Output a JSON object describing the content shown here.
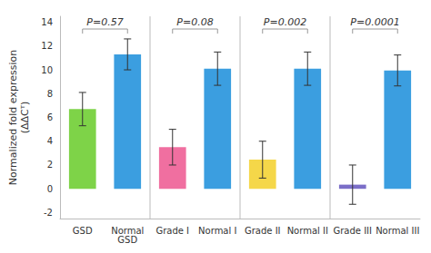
{
  "chart_data": {
    "type": "bar",
    "categories": [
      "GSD",
      "Normal\nGSD",
      "Grade I",
      "Normal I",
      "Grade II",
      "Normal II",
      "Grade III",
      "Normal III"
    ],
    "values": [
      6.7,
      11.3,
      3.5,
      10.1,
      2.45,
      10.1,
      0.35,
      9.95
    ],
    "errors_up": [
      1.4,
      1.3,
      1.5,
      1.4,
      1.55,
      1.4,
      1.65,
      1.3
    ],
    "errors_down": [
      1.4,
      1.3,
      1.5,
      1.4,
      1.55,
      1.4,
      1.65,
      1.3
    ],
    "colors": [
      "#7ED348",
      "#3B9EE0",
      "#F06FA0",
      "#3B9EE0",
      "#F5D749",
      "#3B9EE0",
      "#7B6EC8",
      "#3B9EE0"
    ],
    "annotations": [
      {
        "text": "P=0.57",
        "categories": [
          "GSD",
          "Normal\nGSD"
        ]
      },
      {
        "text": "P=0.08",
        "categories": [
          "Grade I",
          "Normal I"
        ]
      },
      {
        "text": "P=0.002",
        "categories": [
          "Grade II",
          "Normal II"
        ]
      },
      {
        "text": "P=0.0001",
        "categories": [
          "Grade III",
          "Normal III"
        ]
      }
    ],
    "ylabel": "Normalized fold expression\n(ΔΔCᵀ)",
    "ylim": [
      -2.5,
      14.5
    ],
    "yticks": [
      -2,
      0,
      2,
      4,
      6,
      8,
      10,
      12,
      14
    ],
    "grid": false
  }
}
